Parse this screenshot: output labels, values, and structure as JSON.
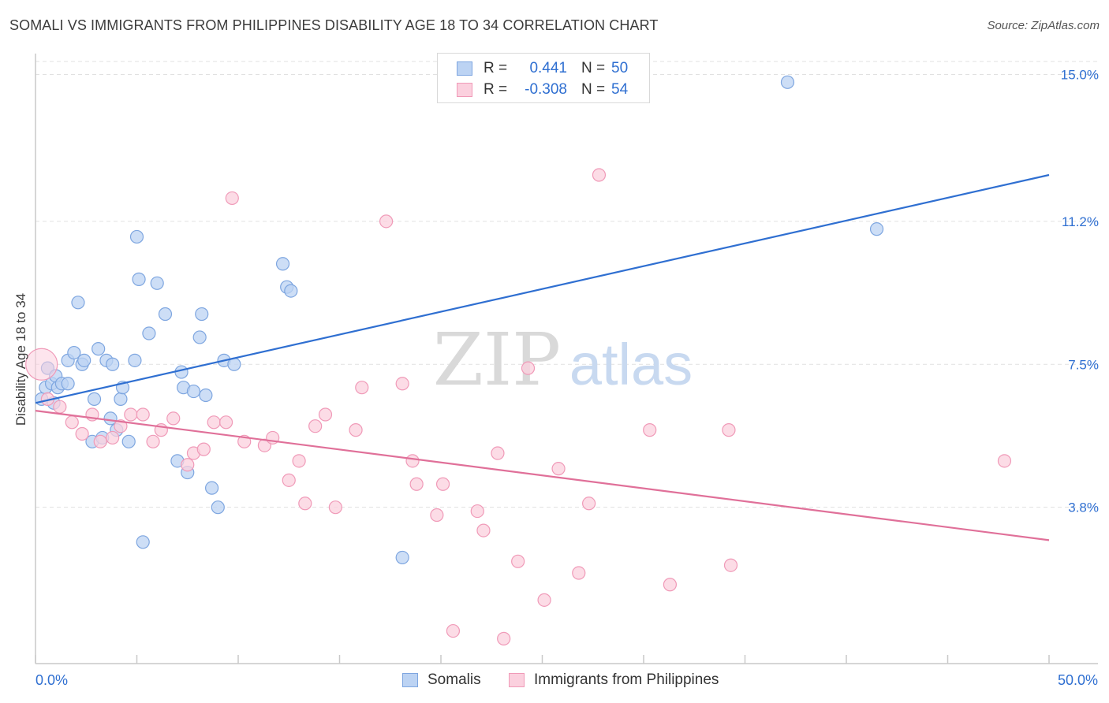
{
  "header": {
    "title": "SOMALI VS IMMIGRANTS FROM PHILIPPINES DISABILITY AGE 18 TO 34 CORRELATION CHART",
    "source": "Source: ZipAtlas.com"
  },
  "watermark": {
    "zip": "ZIP",
    "atlas": "atlas"
  },
  "legend": {
    "rows": [
      {
        "r_label": "R =",
        "r_value": "0.441",
        "n_label": "N =",
        "n_value": "50",
        "color": "#7ea6e0",
        "fill": "#bcd3f3"
      },
      {
        "r_label": "R =",
        "r_value": "-0.308",
        "n_label": "N =",
        "n_value": "54",
        "color": "#f09ab8",
        "fill": "#fbd0de"
      }
    ]
  },
  "bottom_legend": [
    {
      "label": "Somalis",
      "color": "#7ea6e0",
      "fill": "#bcd3f3"
    },
    {
      "label": "Immigrants from Philippines",
      "color": "#f09ab8",
      "fill": "#fbd0de"
    }
  ],
  "chart_data": {
    "type": "scatter",
    "title": "SOMALI VS IMMIGRANTS FROM PHILIPPINES DISABILITY AGE 18 TO 34 CORRELATION CHART",
    "xlabel": "",
    "ylabel": "Disability Age 18 to 34",
    "xlim": [
      0,
      50
    ],
    "ylim": [
      0,
      15.5
    ],
    "x_tick_labels": [
      "0.0%",
      "50.0%"
    ],
    "y_ticks": [
      3.8,
      7.5,
      11.2,
      15.0
    ],
    "y_tick_labels": [
      "3.8%",
      "7.5%",
      "11.2%",
      "15.0%"
    ],
    "grid": true,
    "legend_position": "top-center",
    "series": [
      {
        "name": "Somalis",
        "color": "#2f6fd1",
        "point_fill": "#bcd3f3",
        "point_stroke": "#7ea6e0",
        "trend": {
          "x": [
            0,
            50
          ],
          "y": [
            6.5,
            12.4
          ]
        },
        "points": [
          [
            0.3,
            6.6
          ],
          [
            0.5,
            6.9
          ],
          [
            0.6,
            7.4
          ],
          [
            0.8,
            7.0
          ],
          [
            0.9,
            6.5
          ],
          [
            1.0,
            7.2
          ],
          [
            1.1,
            6.9
          ],
          [
            1.3,
            7.0
          ],
          [
            1.6,
            7.0
          ],
          [
            1.6,
            7.6
          ],
          [
            1.9,
            7.8
          ],
          [
            2.1,
            9.1
          ],
          [
            2.3,
            7.5
          ],
          [
            2.4,
            7.6
          ],
          [
            2.8,
            5.5
          ],
          [
            2.9,
            6.6
          ],
          [
            3.1,
            7.9
          ],
          [
            3.3,
            5.6
          ],
          [
            3.5,
            7.6
          ],
          [
            3.7,
            6.1
          ],
          [
            3.8,
            7.5
          ],
          [
            4.0,
            5.8
          ],
          [
            4.2,
            6.6
          ],
          [
            4.3,
            6.9
          ],
          [
            4.6,
            5.5
          ],
          [
            4.9,
            7.6
          ],
          [
            5.0,
            10.8
          ],
          [
            5.1,
            9.7
          ],
          [
            5.3,
            2.9
          ],
          [
            5.6,
            8.3
          ],
          [
            6.0,
            9.6
          ],
          [
            6.4,
            8.8
          ],
          [
            7.0,
            5.0
          ],
          [
            7.2,
            7.3
          ],
          [
            7.3,
            6.9
          ],
          [
            7.5,
            4.7
          ],
          [
            7.8,
            6.8
          ],
          [
            8.1,
            8.2
          ],
          [
            8.2,
            8.8
          ],
          [
            8.4,
            6.7
          ],
          [
            8.7,
            4.3
          ],
          [
            9.0,
            3.8
          ],
          [
            9.3,
            7.6
          ],
          [
            9.8,
            7.5
          ],
          [
            12.2,
            10.1
          ],
          [
            12.4,
            9.5
          ],
          [
            12.6,
            9.4
          ],
          [
            18.1,
            2.5
          ],
          [
            37.1,
            14.8
          ],
          [
            41.5,
            11.0
          ]
        ]
      },
      {
        "name": "Immigrants from Philippines",
        "color": "#e07099",
        "point_fill": "#fbd0de",
        "point_stroke": "#f09ab8",
        "trend": {
          "x": [
            0,
            50
          ],
          "y": [
            6.3,
            2.95
          ]
        },
        "points": [
          [
            0.3,
            7.5
          ],
          [
            0.6,
            6.6
          ],
          [
            1.2,
            6.4
          ],
          [
            1.8,
            6.0
          ],
          [
            2.3,
            5.7
          ],
          [
            2.8,
            6.2
          ],
          [
            3.2,
            5.5
          ],
          [
            3.8,
            5.6
          ],
          [
            4.2,
            5.9
          ],
          [
            4.7,
            6.2
          ],
          [
            5.3,
            6.2
          ],
          [
            5.8,
            5.5
          ],
          [
            6.2,
            5.8
          ],
          [
            6.8,
            6.1
          ],
          [
            7.5,
            4.9
          ],
          [
            7.8,
            5.2
          ],
          [
            8.3,
            5.3
          ],
          [
            8.8,
            6.0
          ],
          [
            9.4,
            6.0
          ],
          [
            9.7,
            11.8
          ],
          [
            10.3,
            5.5
          ],
          [
            11.3,
            5.4
          ],
          [
            11.7,
            5.6
          ],
          [
            12.5,
            4.5
          ],
          [
            13.0,
            5.0
          ],
          [
            13.3,
            3.9
          ],
          [
            13.8,
            5.9
          ],
          [
            14.3,
            6.2
          ],
          [
            14.8,
            3.8
          ],
          [
            15.8,
            5.8
          ],
          [
            16.1,
            6.9
          ],
          [
            17.3,
            11.2
          ],
          [
            18.1,
            7.0
          ],
          [
            18.6,
            5.0
          ],
          [
            18.8,
            4.4
          ],
          [
            19.8,
            3.6
          ],
          [
            20.1,
            4.4
          ],
          [
            20.6,
            0.6
          ],
          [
            21.8,
            3.7
          ],
          [
            22.1,
            3.2
          ],
          [
            22.8,
            5.2
          ],
          [
            23.1,
            0.4
          ],
          [
            23.8,
            2.4
          ],
          [
            24.3,
            7.4
          ],
          [
            25.1,
            1.4
          ],
          [
            25.8,
            4.8
          ],
          [
            26.8,
            2.1
          ],
          [
            27.3,
            3.9
          ],
          [
            27.8,
            12.4
          ],
          [
            30.3,
            5.8
          ],
          [
            31.3,
            1.8
          ],
          [
            34.2,
            5.8
          ],
          [
            34.3,
            2.3
          ],
          [
            47.8,
            5.0
          ]
        ]
      }
    ]
  }
}
